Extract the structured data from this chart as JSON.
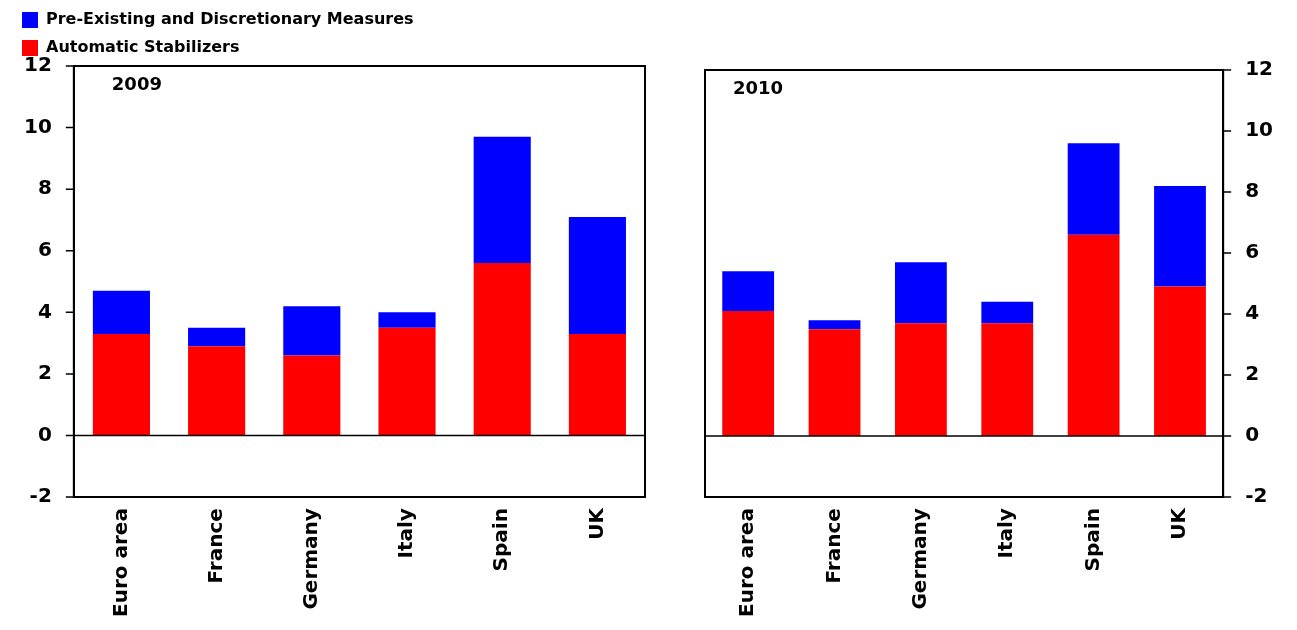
{
  "chart_data": [
    {
      "type": "bar",
      "title": "2009",
      "categories": [
        "Euro area",
        "France",
        "Germany",
        "Italy",
        "Spain",
        "UK"
      ],
      "stacked": true,
      "legend": "top left",
      "series": [
        {
          "name": "Automatic Stabilizers",
          "color": "#ff0000",
          "values": [
            3.3,
            2.9,
            2.6,
            3.5,
            5.6,
            3.3
          ]
        },
        {
          "name": "Pre-Existing and Discretionary Measures",
          "color": "#0000ff",
          "values": [
            1.4,
            0.6,
            1.6,
            0.5,
            4.1,
            3.8
          ]
        }
      ],
      "ylim": [
        -2,
        12
      ],
      "yticks": [
        -2,
        0,
        2,
        4,
        6,
        8,
        10,
        12
      ]
    },
    {
      "type": "bar",
      "title": "2010",
      "categories": [
        "Euro area",
        "France",
        "Germany",
        "Italy",
        "Spain",
        "UK"
      ],
      "stacked": true,
      "series": [
        {
          "color": "#ff0000",
          "values": [
            4.1,
            3.5,
            3.7,
            3.7,
            6.6,
            4.9
          ]
        },
        {
          "color": "#0000ff",
          "values": [
            1.3,
            0.3,
            2.0,
            0.7,
            3.0,
            3.3
          ]
        }
      ],
      "ylim": [
        -2,
        12
      ],
      "yticks": [
        -2,
        0,
        2,
        4,
        6,
        8,
        10,
        12
      ]
    }
  ]
}
